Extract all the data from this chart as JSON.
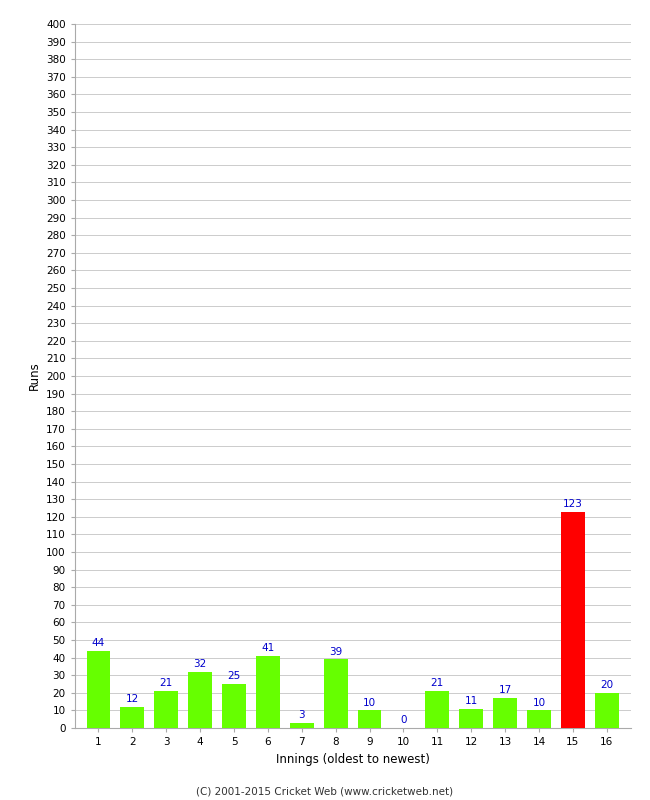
{
  "xlabel": "Innings (oldest to newest)",
  "ylabel": "Runs",
  "categories": [
    1,
    2,
    3,
    4,
    5,
    6,
    7,
    8,
    9,
    10,
    11,
    12,
    13,
    14,
    15,
    16
  ],
  "values": [
    44,
    12,
    21,
    32,
    25,
    41,
    3,
    39,
    10,
    0,
    21,
    11,
    17,
    10,
    123,
    20
  ],
  "bar_colors": [
    "#66ff00",
    "#66ff00",
    "#66ff00",
    "#66ff00",
    "#66ff00",
    "#66ff00",
    "#66ff00",
    "#66ff00",
    "#66ff00",
    "#66ff00",
    "#66ff00",
    "#66ff00",
    "#66ff00",
    "#66ff00",
    "#ff0000",
    "#66ff00"
  ],
  "label_color": "#0000cc",
  "ylim": [
    0,
    400
  ],
  "ytick_step": 10,
  "background_color": "#ffffff",
  "grid_color": "#cccccc",
  "footer": "(C) 2001-2015 Cricket Web (www.cricketweb.net)"
}
